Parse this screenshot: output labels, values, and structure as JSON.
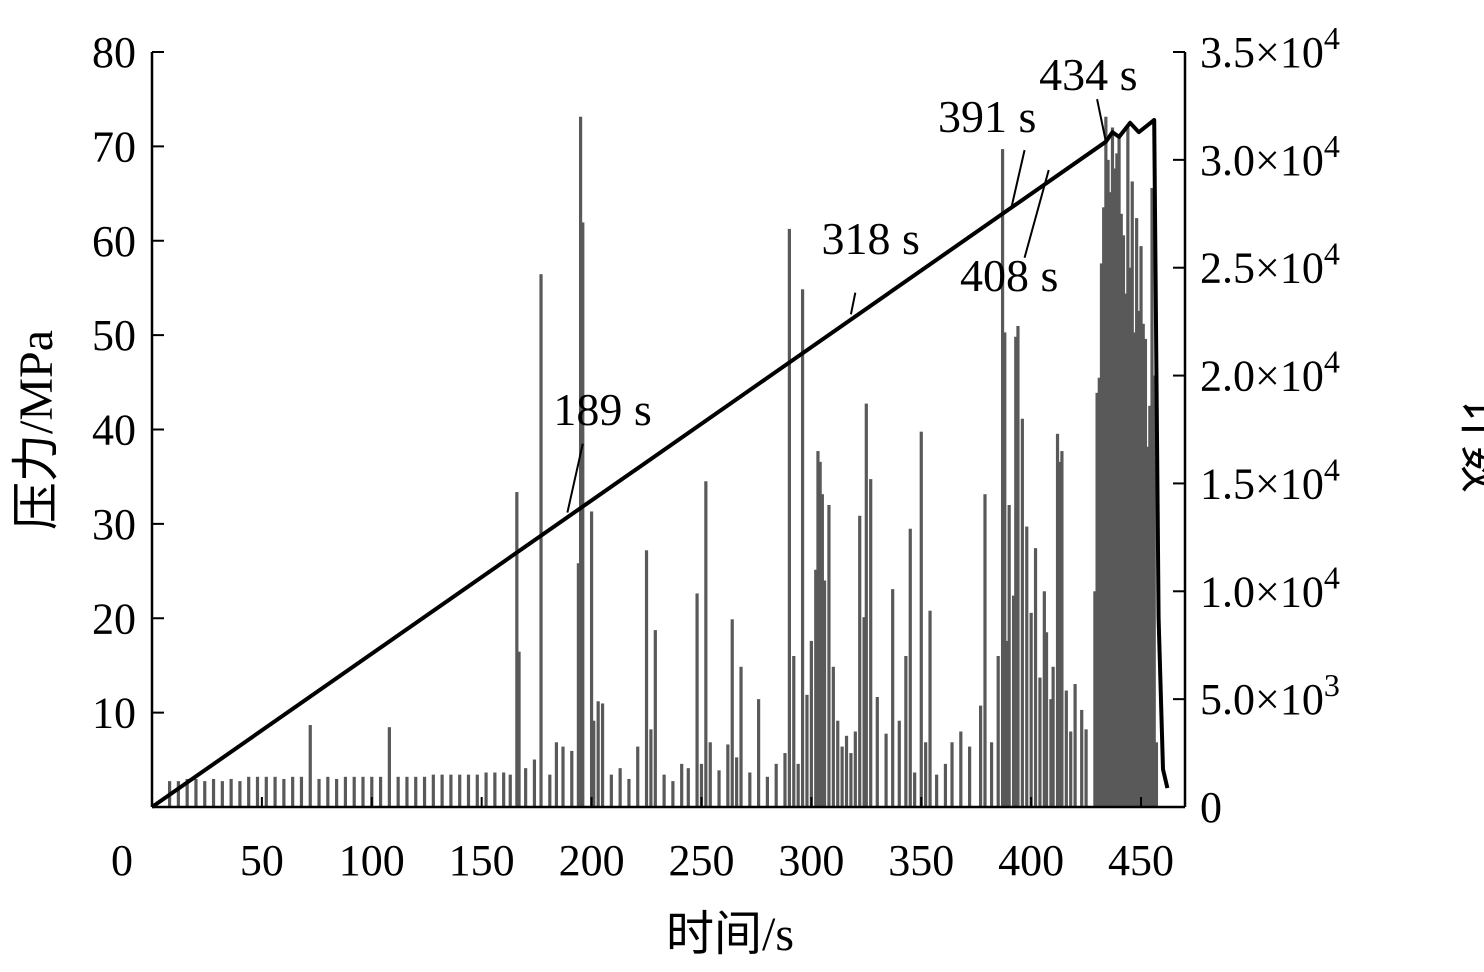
{
  "chart_data": {
    "type": "line",
    "xlabel": "时间/s",
    "ylabel_left": "压力/MPa",
    "ylabel_right": "计数",
    "xlim": [
      0,
      470
    ],
    "ylim_left": [
      0,
      80
    ],
    "ylim_right": [
      0,
      35000
    ],
    "x_ticks": [
      {
        "value": 0,
        "label": "0"
      },
      {
        "value": 50,
        "label": "50"
      },
      {
        "value": 100,
        "label": "100"
      },
      {
        "value": 150,
        "label": "150"
      },
      {
        "value": 200,
        "label": "200"
      },
      {
        "value": 250,
        "label": "250"
      },
      {
        "value": 300,
        "label": "300"
      },
      {
        "value": 350,
        "label": "350"
      },
      {
        "value": 400,
        "label": "400"
      },
      {
        "value": 450,
        "label": "450"
      }
    ],
    "y_left_ticks": [
      {
        "value": 10,
        "label": "10"
      },
      {
        "value": 20,
        "label": "20"
      },
      {
        "value": 30,
        "label": "30"
      },
      {
        "value": 40,
        "label": "40"
      },
      {
        "value": 50,
        "label": "50"
      },
      {
        "value": 60,
        "label": "60"
      },
      {
        "value": 70,
        "label": "70"
      },
      {
        "value": 80,
        "label": "80"
      }
    ],
    "y_right_ticks": [
      {
        "value": 0,
        "label": "0"
      },
      {
        "value": 5000,
        "mantissa": "5.0",
        "exponent": "3"
      },
      {
        "value": 10000,
        "mantissa": "1.0",
        "exponent": "4"
      },
      {
        "value": 15000,
        "mantissa": "1.5",
        "exponent": "4"
      },
      {
        "value": 20000,
        "mantissa": "2.0",
        "exponent": "4"
      },
      {
        "value": 25000,
        "mantissa": "2.5",
        "exponent": "4"
      },
      {
        "value": 30000,
        "mantissa": "3.0",
        "exponent": "4"
      },
      {
        "value": 35000,
        "mantissa": "3.5",
        "exponent": "4"
      }
    ],
    "times_label": "×10",
    "series": [
      {
        "axis": "left",
        "style": "line",
        "color": "#000000",
        "points": [
          [
            0,
            0
          ],
          [
            434,
            70.5
          ],
          [
            437,
            71.5
          ],
          [
            440,
            71
          ],
          [
            445,
            72.5
          ],
          [
            449,
            71.5
          ],
          [
            456,
            72.8
          ],
          [
            458,
            20
          ],
          [
            460,
            4
          ],
          [
            462,
            2
          ]
        ]
      },
      {
        "axis": "right",
        "style": "bars",
        "color": "#595959",
        "bars": [
          [
            8,
            1200
          ],
          [
            12,
            1200
          ],
          [
            16,
            1300
          ],
          [
            20,
            1300
          ],
          [
            24,
            1200
          ],
          [
            28,
            1300
          ],
          [
            32,
            1200
          ],
          [
            36,
            1300
          ],
          [
            40,
            1200
          ],
          [
            44,
            1400
          ],
          [
            48,
            1400
          ],
          [
            52,
            1400
          ],
          [
            56,
            1400
          ],
          [
            60,
            1300
          ],
          [
            64,
            1400
          ],
          [
            68,
            1400
          ],
          [
            72,
            3800
          ],
          [
            76,
            1300
          ],
          [
            80,
            1400
          ],
          [
            84,
            1300
          ],
          [
            88,
            1400
          ],
          [
            92,
            1400
          ],
          [
            96,
            1400
          ],
          [
            100,
            1400
          ],
          [
            104,
            1400
          ],
          [
            108,
            3700
          ],
          [
            112,
            1400
          ],
          [
            116,
            1400
          ],
          [
            120,
            1400
          ],
          [
            124,
            1400
          ],
          [
            128,
            1500
          ],
          [
            132,
            1500
          ],
          [
            136,
            1500
          ],
          [
            140,
            1500
          ],
          [
            144,
            1500
          ],
          [
            148,
            1500
          ],
          [
            152,
            1600
          ],
          [
            156,
            1600
          ],
          [
            160,
            1600
          ],
          [
            163,
            1500
          ],
          [
            166,
            14600
          ],
          [
            167,
            7200
          ],
          [
            170,
            1800
          ],
          [
            174,
            2200
          ],
          [
            177,
            24700
          ],
          [
            181,
            1500
          ],
          [
            184,
            3000
          ],
          [
            187,
            2800
          ],
          [
            191,
            2600
          ],
          [
            194,
            11300
          ],
          [
            195,
            32000
          ],
          [
            196,
            27100
          ],
          [
            200,
            13700
          ],
          [
            201,
            4000
          ],
          [
            203,
            4900
          ],
          [
            205,
            4800
          ],
          [
            209,
            1500
          ],
          [
            213,
            1800
          ],
          [
            217,
            1300
          ],
          [
            221,
            2800
          ],
          [
            225,
            11900
          ],
          [
            227,
            3600
          ],
          [
            229,
            8200
          ],
          [
            233,
            1500
          ],
          [
            237,
            1200
          ],
          [
            241,
            2000
          ],
          [
            244,
            1800
          ],
          [
            248,
            9900
          ],
          [
            250,
            2000
          ],
          [
            252,
            15100
          ],
          [
            254,
            3000
          ],
          [
            258,
            1700
          ],
          [
            262,
            2900
          ],
          [
            264,
            8700
          ],
          [
            266,
            2300
          ],
          [
            268,
            6500
          ],
          [
            272,
            1600
          ],
          [
            276,
            5000
          ],
          [
            280,
            1400
          ],
          [
            284,
            2000
          ],
          [
            288,
            2500
          ],
          [
            290,
            26800
          ],
          [
            292,
            7000
          ],
          [
            294,
            2000
          ],
          [
            296,
            24000
          ],
          [
            298,
            5200
          ],
          [
            300,
            7700
          ],
          [
            302,
            11000
          ],
          [
            303,
            16500
          ],
          [
            304,
            16000
          ],
          [
            305,
            14500
          ],
          [
            306,
            10500
          ],
          [
            308,
            14000
          ],
          [
            310,
            6500
          ],
          [
            312,
            4000
          ],
          [
            314,
            2800
          ],
          [
            316,
            3300
          ],
          [
            318,
            2500
          ],
          [
            320,
            3500
          ],
          [
            322,
            13500
          ],
          [
            324,
            8800
          ],
          [
            325,
            18700
          ],
          [
            327,
            15200
          ],
          [
            330,
            5100
          ],
          [
            334,
            3400
          ],
          [
            337,
            10100
          ],
          [
            340,
            4000
          ],
          [
            343,
            7000
          ],
          [
            345,
            12900
          ],
          [
            347,
            1600
          ],
          [
            350,
            17400
          ],
          [
            352,
            3000
          ],
          [
            354,
            9100
          ],
          [
            357,
            1500
          ],
          [
            361,
            2000
          ],
          [
            364,
            3000
          ],
          [
            368,
            3500
          ],
          [
            372,
            2800
          ],
          [
            377,
            4700
          ],
          [
            379,
            14500
          ],
          [
            382,
            3000
          ],
          [
            385,
            7000
          ],
          [
            387,
            30500
          ],
          [
            388,
            22000
          ],
          [
            389,
            7700
          ],
          [
            390,
            14000
          ],
          [
            392,
            9800
          ],
          [
            393,
            21800
          ],
          [
            394,
            22300
          ],
          [
            396,
            18000
          ],
          [
            398,
            13000
          ],
          [
            400,
            9000
          ],
          [
            402,
            12000
          ],
          [
            404,
            6000
          ],
          [
            406,
            10000
          ],
          [
            407,
            8100
          ],
          [
            409,
            5000
          ],
          [
            410,
            6500
          ],
          [
            412,
            17300
          ],
          [
            413,
            16000
          ],
          [
            414,
            16500
          ],
          [
            416,
            5400
          ],
          [
            418,
            3500
          ],
          [
            420,
            5700
          ],
          [
            423,
            4500
          ],
          [
            425,
            3600
          ],
          [
            429,
            10000
          ],
          [
            430,
            19200
          ],
          [
            431,
            19900
          ],
          [
            432,
            25200
          ],
          [
            433,
            27800
          ],
          [
            434,
            32000
          ],
          [
            435,
            30000
          ],
          [
            436,
            28500
          ],
          [
            437,
            31500
          ],
          [
            438,
            29600
          ],
          [
            439,
            30300
          ],
          [
            440,
            31100
          ],
          [
            441,
            27500
          ],
          [
            442,
            26500
          ],
          [
            443,
            23800
          ],
          [
            444,
            31500
          ],
          [
            445,
            25000
          ],
          [
            446,
            29000
          ],
          [
            447,
            22000
          ],
          [
            448,
            27300
          ],
          [
            449,
            23000
          ],
          [
            450,
            26000
          ],
          [
            451,
            22400
          ],
          [
            452,
            21700
          ],
          [
            453,
            16700
          ],
          [
            454,
            18600
          ],
          [
            455,
            28700
          ],
          [
            456,
            20000
          ],
          [
            457,
            3000
          ]
        ]
      }
    ],
    "annotations": [
      {
        "text": "189 s",
        "x": 189,
        "y": 31.2,
        "text_x": 205,
        "text_y": 40.5,
        "line_x": 196,
        "line_y": 38.5
      },
      {
        "text": "318 s",
        "x": 318,
        "y": 52.2,
        "text_x": 327,
        "text_y": 58.6,
        "line_x": 320,
        "line_y": 54.5
      },
      {
        "text": "391 s",
        "x": 391,
        "y": 63.5,
        "text_x": 380,
        "text_y": 71.5,
        "line_x": 397,
        "line_y": 69.6
      },
      {
        "text": "408 s",
        "x": 408,
        "y": 67.5,
        "text_x": 390,
        "text_y": 54.7,
        "line_x": 397,
        "line_y": 58.2
      },
      {
        "text": "434 s",
        "x": 434,
        "y": 70.5,
        "text_x": 426,
        "text_y": 76,
        "line_x": 430,
        "line_y": 75.0
      }
    ]
  }
}
